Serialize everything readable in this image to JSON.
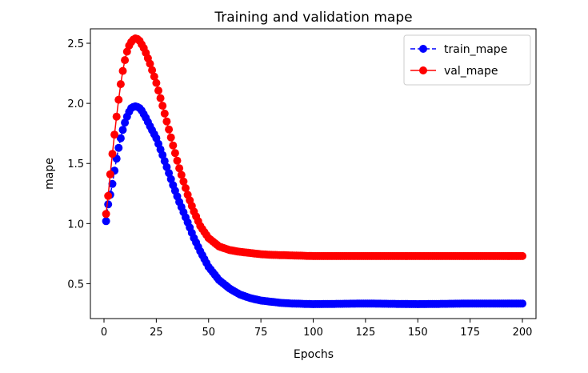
{
  "chart_data": {
    "type": "line",
    "title": "Training and validation mape",
    "xlabel": "Epochs",
    "ylabel": "mape",
    "xlim": [
      -6.5,
      206.5
    ],
    "ylim": [
      0.21,
      2.62
    ],
    "xticks": [
      0,
      25,
      50,
      75,
      100,
      125,
      150,
      175,
      200
    ],
    "yticks": [
      0.5,
      1.0,
      1.5,
      2.0,
      2.5
    ],
    "ytick_labels": [
      "0.5",
      "1.0",
      "1.5",
      "2.0",
      "2.5"
    ],
    "grid": false,
    "legend_position": "top-right",
    "x": {
      "start": 1,
      "end": 200,
      "step": 1
    },
    "series": [
      {
        "name": "train_mape",
        "color": "#0000ff",
        "linestyle": "dashed",
        "marker": "circle",
        "keypoints": [
          [
            1,
            1.02
          ],
          [
            2,
            1.16
          ],
          [
            3,
            1.24
          ],
          [
            4,
            1.33
          ],
          [
            5,
            1.44
          ],
          [
            6,
            1.54
          ],
          [
            7,
            1.63
          ],
          [
            8,
            1.71
          ],
          [
            9,
            1.78
          ],
          [
            10,
            1.84
          ],
          [
            11,
            1.89
          ],
          [
            12,
            1.93
          ],
          [
            13,
            1.96
          ],
          [
            14,
            1.97
          ],
          [
            15,
            1.975
          ],
          [
            16,
            1.97
          ],
          [
            17,
            1.96
          ],
          [
            18,
            1.94
          ],
          [
            19,
            1.91
          ],
          [
            20,
            1.88
          ],
          [
            22,
            1.81
          ],
          [
            25,
            1.71
          ],
          [
            28,
            1.57
          ],
          [
            30,
            1.47
          ],
          [
            33,
            1.32
          ],
          [
            36,
            1.18
          ],
          [
            40,
            1.01
          ],
          [
            43,
            0.88
          ],
          [
            46,
            0.77
          ],
          [
            50,
            0.64
          ],
          [
            55,
            0.53
          ],
          [
            60,
            0.46
          ],
          [
            65,
            0.41
          ],
          [
            70,
            0.38
          ],
          [
            75,
            0.36
          ],
          [
            80,
            0.35
          ],
          [
            85,
            0.34
          ],
          [
            90,
            0.335
          ],
          [
            100,
            0.33
          ],
          [
            125,
            0.335
          ],
          [
            150,
            0.33
          ],
          [
            175,
            0.335
          ],
          [
            200,
            0.335
          ]
        ]
      },
      {
        "name": "val_mape",
        "color": "#ff0000",
        "linestyle": "solid",
        "marker": "circle",
        "keypoints": [
          [
            1,
            1.08
          ],
          [
            2,
            1.23
          ],
          [
            3,
            1.41
          ],
          [
            4,
            1.58
          ],
          [
            5,
            1.74
          ],
          [
            6,
            1.89
          ],
          [
            7,
            2.03
          ],
          [
            8,
            2.16
          ],
          [
            9,
            2.27
          ],
          [
            10,
            2.36
          ],
          [
            11,
            2.43
          ],
          [
            12,
            2.48
          ],
          [
            13,
            2.51
          ],
          [
            14,
            2.53
          ],
          [
            15,
            2.54
          ],
          [
            16,
            2.535
          ],
          [
            17,
            2.52
          ],
          [
            18,
            2.49
          ],
          [
            19,
            2.46
          ],
          [
            20,
            2.42
          ],
          [
            22,
            2.33
          ],
          [
            25,
            2.17
          ],
          [
            28,
            1.98
          ],
          [
            30,
            1.85
          ],
          [
            33,
            1.65
          ],
          [
            36,
            1.46
          ],
          [
            40,
            1.24
          ],
          [
            43,
            1.1
          ],
          [
            46,
            0.98
          ],
          [
            50,
            0.88
          ],
          [
            55,
            0.81
          ],
          [
            60,
            0.78
          ],
          [
            65,
            0.765
          ],
          [
            70,
            0.755
          ],
          [
            75,
            0.745
          ],
          [
            80,
            0.74
          ],
          [
            90,
            0.735
          ],
          [
            100,
            0.73
          ],
          [
            125,
            0.73
          ],
          [
            150,
            0.73
          ],
          [
            175,
            0.73
          ],
          [
            200,
            0.73
          ]
        ]
      }
    ]
  }
}
